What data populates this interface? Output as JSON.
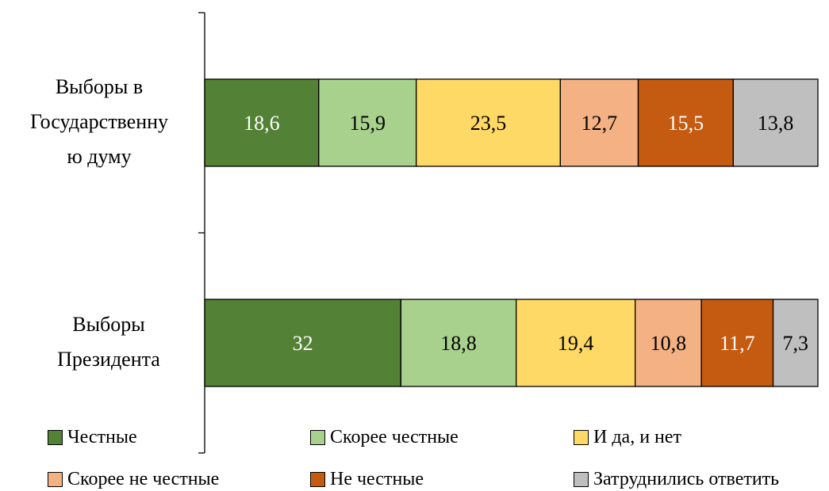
{
  "chart_data": {
    "type": "bar",
    "orientation": "horizontal",
    "stacked": true,
    "categories": [
      "Выборы в Государственну ю думу",
      "Выборы Президента"
    ],
    "series": [
      {
        "name": "Честные",
        "color": "#538135",
        "label_color": "#ffffff",
        "values": [
          18.6,
          32
        ]
      },
      {
        "name": "Скорее честные",
        "color": "#a9d18e",
        "label_color": "#000000",
        "values": [
          15.9,
          18.8
        ]
      },
      {
        "name": "И да, и нет",
        "color": "#ffd966",
        "label_color": "#000000",
        "values": [
          23.5,
          19.4
        ]
      },
      {
        "name": "Скорее не честные",
        "color": "#f4b183",
        "label_color": "#000000",
        "values": [
          12.7,
          10.8
        ]
      },
      {
        "name": "Не честные",
        "color": "#c55a11",
        "label_color": "#ffffff",
        "values": [
          15.5,
          11.7
        ]
      },
      {
        "name": "Затруднились ответить",
        "color": "#bfbfbf",
        "label_color": "#000000",
        "values": [
          13.8,
          7.3
        ]
      }
    ],
    "data_labels": [
      [
        "18,6",
        "15,9",
        "23,5",
        "12,7",
        "15,5",
        "13,8"
      ],
      [
        "32",
        "18,8",
        "19,4",
        "10,8",
        "11,7",
        "7,3"
      ]
    ],
    "xlim": [
      0,
      100
    ],
    "grid": false,
    "legend_position": "bottom"
  },
  "category_labels": [
    "Выборы в\nГосударственну\nю думу",
    "Выборы\nПрезидента"
  ]
}
